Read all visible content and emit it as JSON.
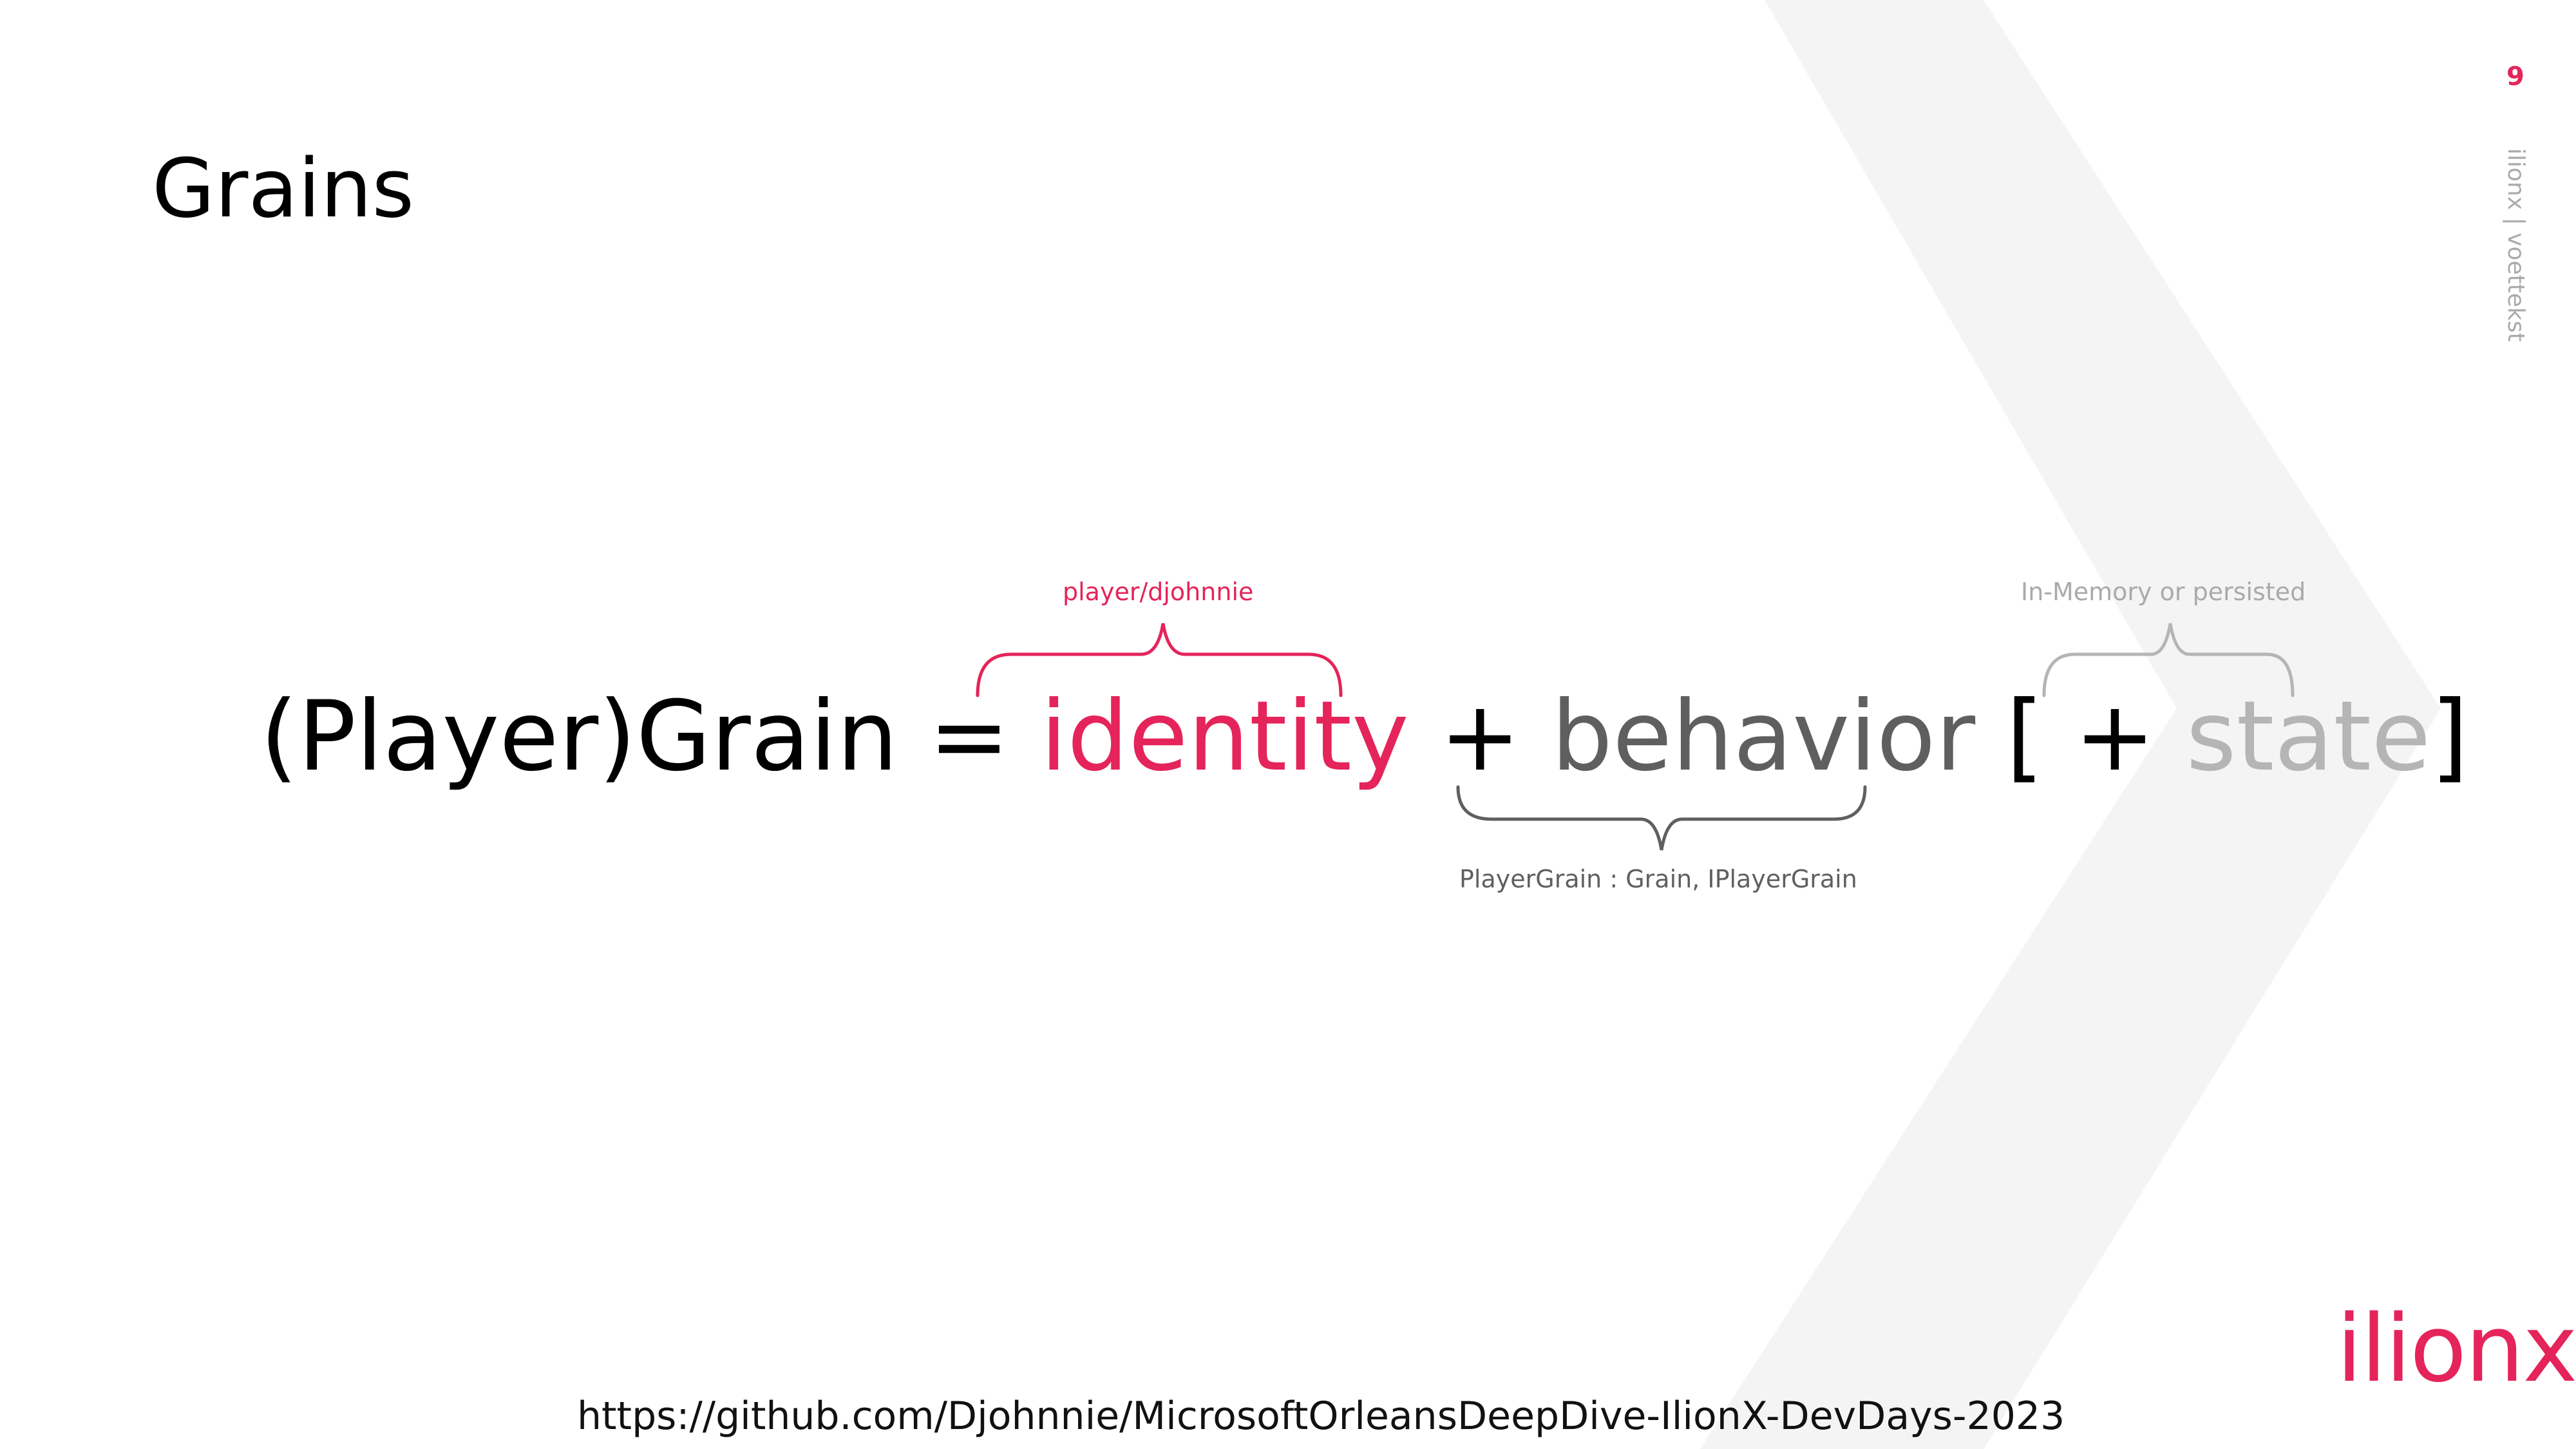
{
  "slide": {
    "title": "Grains",
    "page_number": "9",
    "footer_text": "ilionx | voettekst",
    "logo_text": "ilionx",
    "link": "https://github.com/Djohnnie/MicrosoftOrleansDeepDive-IlionX-DevDays-2023"
  },
  "equation": {
    "subject": "(Player)Grain =",
    "identity": "identity",
    "plus1": "+",
    "behavior": "behavior",
    "bracket_open": "[ +",
    "state": "state",
    "bracket_close": "]"
  },
  "annotations": {
    "identity": "player/djohnnie",
    "behavior": "PlayerGrain : Grain, IPlayerGrain",
    "state": "In-Memory or persisted"
  },
  "colors": {
    "accent": "#e4245a",
    "behavior": "#5f5f5f",
    "state": "#b5b5b5",
    "background_chevron": "#f4f4f4"
  }
}
